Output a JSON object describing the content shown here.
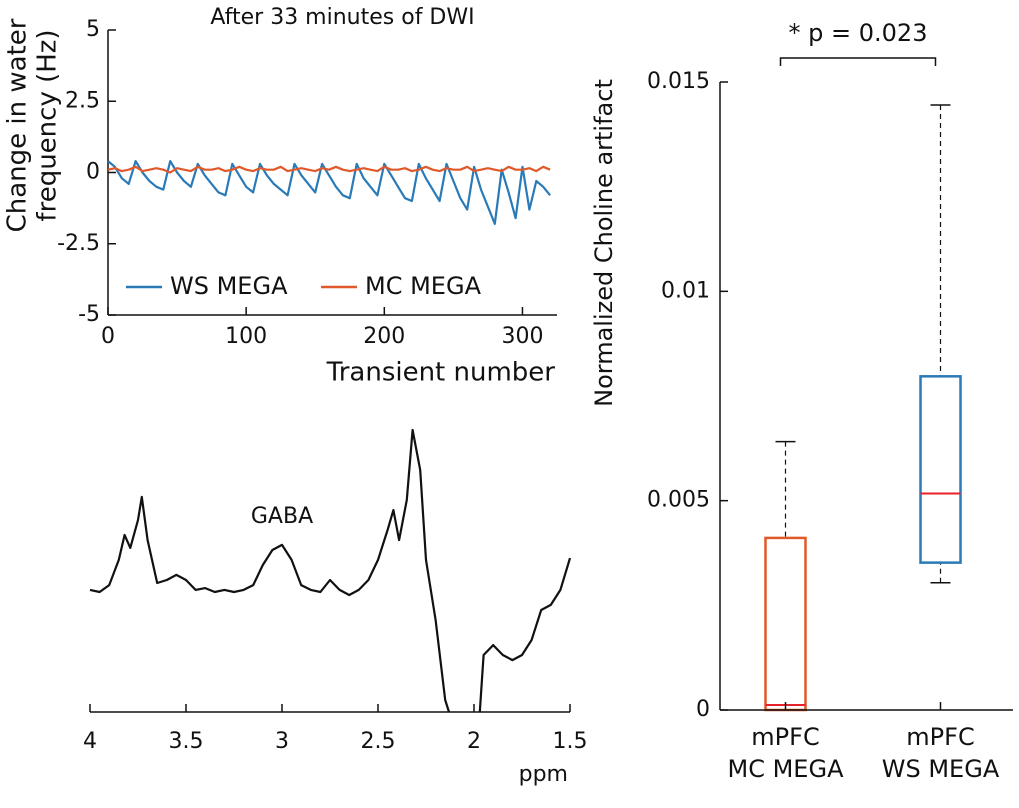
{
  "chart_data": [
    {
      "type": "line",
      "title": "After 33 minutes of DWI",
      "ylabel": [
        "Change in water",
        "frequency (Hz)"
      ],
      "xlabel": "Transient number",
      "xlim": [
        0,
        325
      ],
      "xticks": [
        0,
        100,
        200,
        300
      ],
      "ylim": [
        -5,
        5
      ],
      "yticks": [
        -5,
        -2.5,
        0,
        2.5,
        5
      ],
      "legend": "lower left",
      "x": [
        0,
        5,
        10,
        15,
        20,
        25,
        30,
        35,
        40,
        45,
        50,
        55,
        60,
        65,
        70,
        75,
        80,
        85,
        90,
        95,
        100,
        105,
        110,
        115,
        120,
        125,
        130,
        135,
        140,
        145,
        150,
        155,
        160,
        165,
        170,
        175,
        180,
        185,
        190,
        195,
        200,
        205,
        210,
        215,
        220,
        225,
        230,
        235,
        240,
        245,
        250,
        255,
        260,
        265,
        270,
        275,
        280,
        285,
        290,
        295,
        300,
        305,
        310,
        315,
        320
      ],
      "series": [
        {
          "name": "WS MEGA",
          "color": "#2a7ab8",
          "values": [
            0.4,
            0.2,
            -0.2,
            -0.4,
            0.4,
            0.0,
            -0.3,
            -0.5,
            -0.6,
            0.4,
            0.0,
            -0.3,
            -0.5,
            0.3,
            -0.1,
            -0.4,
            -0.7,
            -0.8,
            0.3,
            -0.1,
            -0.5,
            -0.7,
            0.3,
            -0.1,
            -0.4,
            -0.6,
            -0.8,
            0.3,
            -0.1,
            -0.4,
            -0.7,
            0.3,
            -0.1,
            -0.5,
            -0.8,
            -0.9,
            0.3,
            -0.2,
            -0.5,
            -0.8,
            0.3,
            -0.1,
            -0.5,
            -0.9,
            -1.0,
            0.3,
            -0.2,
            -0.6,
            -1.0,
            0.3,
            -0.3,
            -0.9,
            -1.3,
            0.2,
            -0.6,
            -1.2,
            -1.8,
            0.1,
            -0.7,
            -1.6,
            0.2,
            -1.3,
            -0.3,
            -0.5,
            -0.8
          ]
        },
        {
          "name": "MC MEGA",
          "color": "#e0592a",
          "values": [
            0.1,
            0.15,
            0.05,
            0.1,
            0.2,
            0.05,
            0.1,
            0.15,
            0.1,
            0.0,
            0.15,
            0.1,
            0.05,
            0.2,
            0.1,
            0.1,
            0.15,
            0.05,
            0.1,
            0.2,
            0.1,
            0.05,
            0.15,
            0.1,
            0.1,
            0.2,
            0.05,
            0.1,
            0.15,
            0.1,
            0.05,
            0.15,
            0.1,
            0.2,
            0.1,
            0.05,
            0.1,
            0.15,
            0.1,
            0.05,
            0.2,
            0.1,
            0.1,
            0.15,
            0.05,
            0.1,
            0.2,
            0.1,
            0.05,
            0.15,
            0.1,
            0.1,
            0.2,
            0.05,
            0.1,
            0.15,
            0.1,
            0.05,
            0.2,
            0.1,
            0.1,
            0.15,
            0.05,
            0.2,
            0.1
          ]
        }
      ]
    },
    {
      "type": "line",
      "xlabel": "ppm",
      "xlim": [
        4,
        1.5
      ],
      "xticks": [
        4,
        3.5,
        3,
        2.5,
        2,
        1.5
      ],
      "ylim": [
        0,
        100
      ],
      "annotations": [
        {
          "text": "GABA",
          "x": 3.0,
          "y": 65
        }
      ],
      "x": [
        4.0,
        3.95,
        3.9,
        3.85,
        3.82,
        3.79,
        3.75,
        3.73,
        3.7,
        3.65,
        3.6,
        3.55,
        3.5,
        3.45,
        3.4,
        3.35,
        3.3,
        3.25,
        3.2,
        3.15,
        3.1,
        3.05,
        3.0,
        2.95,
        2.9,
        2.85,
        2.8,
        2.75,
        2.7,
        2.65,
        2.6,
        2.55,
        2.5,
        2.45,
        2.42,
        2.39,
        2.35,
        2.32,
        2.28,
        2.25,
        2.2,
        2.15,
        2.13,
        2.05,
        1.97,
        1.95,
        1.9,
        1.85,
        1.8,
        1.75,
        1.7,
        1.65,
        1.6,
        1.55,
        1.5
      ],
      "series": [
        {
          "color": "#111111",
          "values": [
            40.7,
            40,
            42.3,
            50.7,
            59,
            54.7,
            64,
            71.7,
            57.3,
            43,
            44,
            45.7,
            44,
            40.7,
            41.3,
            40,
            40.7,
            40,
            40.7,
            42.3,
            49,
            54,
            55.7,
            50.7,
            42.3,
            40.7,
            40,
            44,
            40.7,
            39,
            40.7,
            44,
            50.7,
            60.7,
            67.3,
            57.3,
            70.7,
            94,
            80.7,
            50.7,
            30.7,
            4,
            0,
            null,
            0,
            19,
            22.3,
            19,
            17.3,
            19,
            24,
            34,
            35.7,
            40.7,
            51.3
          ]
        }
      ]
    },
    {
      "type": "box",
      "ylabel": "Normalized Choline artifact",
      "ylim": [
        0,
        0.015
      ],
      "yticks": [
        0,
        0.005,
        0.01,
        0.015
      ],
      "categories": [
        [
          "mPFC",
          "MC MEGA"
        ],
        [
          "mPFC",
          "WS MEGA"
        ]
      ],
      "colors": [
        "#e0592a",
        "#2a7ab8"
      ],
      "median_color": "#e8202a",
      "boxes": [
        {
          "min": 0,
          "q1": 0,
          "median": 0.00012,
          "q3": 0.00411,
          "max": 0.00641
        },
        {
          "min": 0.00304,
          "q1": 0.00352,
          "median": 0.00517,
          "q3": 0.00797,
          "max": 0.01445
        }
      ],
      "annotation": "* p = 0.023"
    }
  ]
}
